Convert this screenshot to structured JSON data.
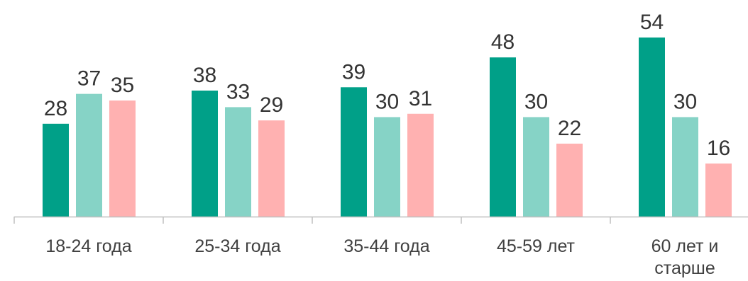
{
  "chart_data": {
    "type": "bar",
    "categories": [
      [
        "18-24 года"
      ],
      [
        "25-34 года"
      ],
      [
        "35-44 года"
      ],
      [
        "45-59 лет"
      ],
      [
        "60 лет и",
        "старше"
      ]
    ],
    "series": [
      {
        "values": [
          28,
          38,
          39,
          48,
          54
        ],
        "color": "#00A088"
      },
      {
        "values": [
          37,
          33,
          30,
          30,
          30
        ],
        "color": "#86D3C6"
      },
      {
        "values": [
          35,
          29,
          31,
          22,
          16
        ],
        "color": "#FFB1B1"
      }
    ],
    "ylim": [
      0,
      54
    ],
    "axis_color": "#BFBFBF",
    "data_labels": true,
    "legend": "none",
    "grid": false
  }
}
